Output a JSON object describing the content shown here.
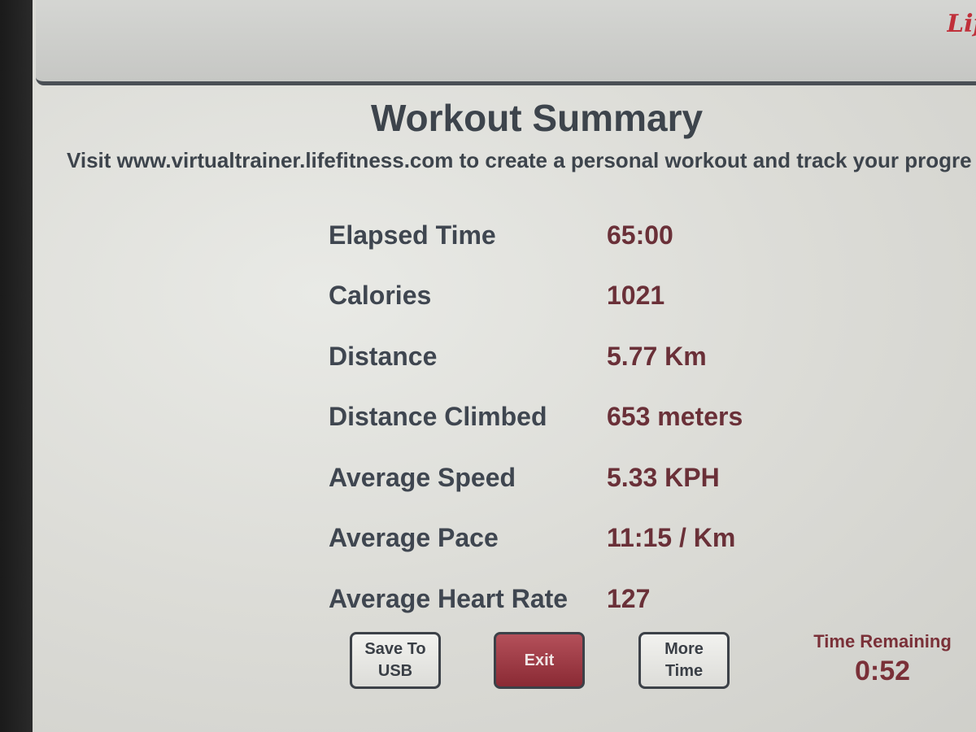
{
  "header": {
    "logo": "LifeFitness"
  },
  "title": "Workout Summary",
  "subtitle": "Visit www.virtualtrainer.lifefitness.com to create a personal workout and track your progre",
  "stats": [
    {
      "label": "Elapsed Time",
      "value": "65:00"
    },
    {
      "label": "Calories",
      "value": "1021"
    },
    {
      "label": "Distance",
      "value": "5.77 Km"
    },
    {
      "label": "Distance Climbed",
      "value": "653 meters"
    },
    {
      "label": "Average Speed",
      "value": "5.33 KPH"
    },
    {
      "label": "Average Pace",
      "value": "11:15 / Km"
    },
    {
      "label": "Average Heart Rate",
      "value": "127"
    }
  ],
  "buttons": {
    "save_line1": "Save To",
    "save_line2": "USB",
    "exit": "Exit",
    "more_line1": "More",
    "more_line2": "Time"
  },
  "time_remaining": {
    "label": "Time Remaining",
    "value": "0:52"
  },
  "colors": {
    "accent": "#9a3a44",
    "text": "#3d444c",
    "value": "#6a3038"
  }
}
